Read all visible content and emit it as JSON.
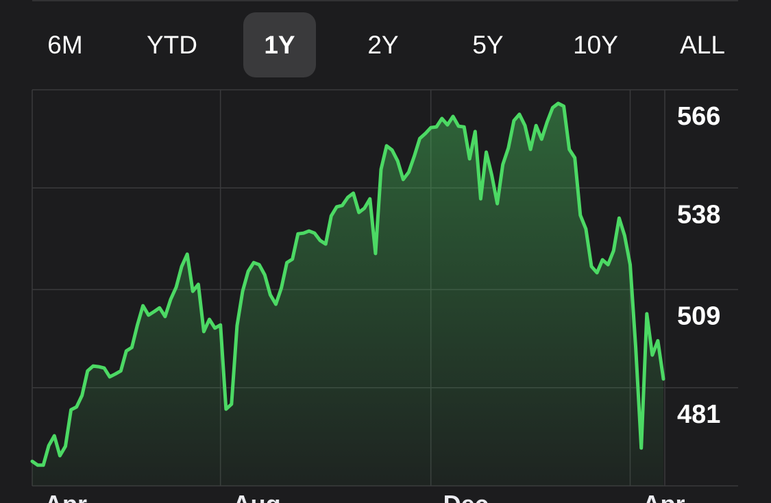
{
  "tabs": {
    "items": [
      "6M",
      "YTD",
      "1Y",
      "2Y",
      "5Y",
      "10Y",
      "ALL"
    ],
    "selected": 2
  },
  "chart_data": {
    "type": "line",
    "color": "#4cd964",
    "values": [
      460.0,
      458.9,
      458.9,
      464.5,
      467.3,
      461.6,
      464.3,
      474.7,
      475.5,
      478.8,
      485.8,
      487.2,
      487.0,
      486.6,
      484.1,
      484.9,
      485.8,
      491.5,
      492.5,
      498.9,
      504.4,
      501.7,
      502.7,
      503.8,
      501.3,
      506.2,
      509.7,
      515.6,
      519.1,
      508.5,
      510.5,
      497.0,
      500.5,
      498.0,
      498.9,
      474.9,
      476.3,
      498.7,
      508.5,
      514.2,
      516.7,
      516.1,
      513.2,
      507.5,
      504.8,
      509.5,
      516.7,
      517.7,
      524.9,
      525.1,
      525.7,
      525.1,
      523.0,
      522.0,
      530.0,
      532.6,
      533.0,
      535.3,
      536.5,
      531.0,
      532.2,
      534.9,
      519.3,
      543.3,
      550.0,
      548.8,
      545.7,
      540.4,
      542.5,
      547.0,
      552.1,
      553.5,
      555.2,
      555.4,
      557.8,
      556.0,
      558.4,
      555.6,
      555.4,
      546.3,
      554.1,
      534.9,
      548.2,
      541.6,
      533.5,
      544.7,
      549.4,
      557.2,
      559.0,
      555.8,
      549.0,
      555.8,
      551.9,
      556.8,
      560.9,
      562.1,
      561.3,
      549.0,
      546.6,
      530.2,
      526.3,
      515.6,
      513.8,
      517.5,
      516.1,
      520.1,
      529.4,
      524.4,
      516.1,
      492.5,
      463.8,
      502.1,
      490.3,
      494.4,
      483.5
    ],
    "ylim": [
      453,
      566
    ],
    "yticks": [
      566,
      538,
      509,
      481
    ],
    "xlim": [
      0,
      114
    ],
    "xticks": [
      {
        "value": 0,
        "label": "Apr"
      },
      {
        "value": 34,
        "label": "Aug"
      },
      {
        "value": 72,
        "label": "Dec"
      },
      {
        "value": 108,
        "label": "Apr"
      }
    ],
    "grid": true
  }
}
